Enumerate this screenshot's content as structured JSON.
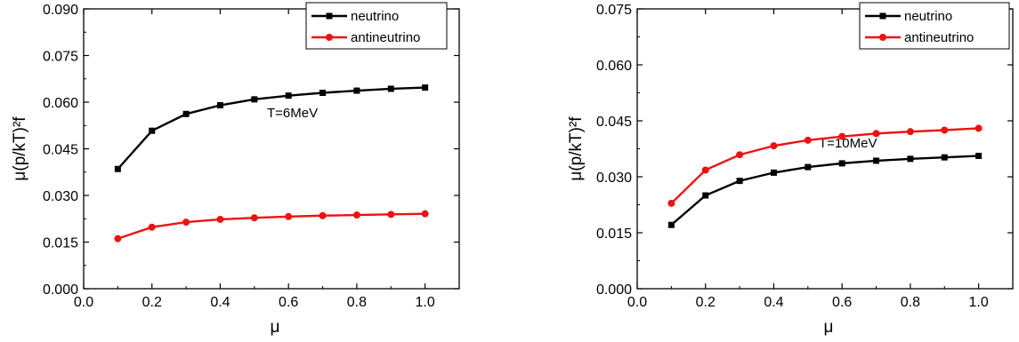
{
  "chart_data": [
    {
      "type": "line",
      "xlabel": "μ",
      "ylabel": "μ(p/kT)²f",
      "annotation": "T=6MeV",
      "xlim": [
        0.0,
        1.1
      ],
      "ylim": [
        0.0,
        0.09
      ],
      "x_ticks": [
        "0.0",
        "0.2",
        "0.4",
        "0.6",
        "0.8",
        "1.0"
      ],
      "y_ticks": [
        "0.000",
        "0.015",
        "0.030",
        "0.045",
        "0.060",
        "0.075",
        "0.090"
      ],
      "legend_position": "top-right",
      "x": [
        0.1,
        0.2,
        0.3,
        0.4,
        0.5,
        0.6,
        0.7,
        0.8,
        0.9,
        1.0
      ],
      "series": [
        {
          "name": "neutrino",
          "color": "#000000",
          "marker": "square",
          "values": [
            0.0385,
            0.0508,
            0.0562,
            0.059,
            0.0609,
            0.0621,
            0.063,
            0.0637,
            0.0643,
            0.0647
          ]
        },
        {
          "name": "antineutrino",
          "color": "#ee1111",
          "marker": "circle",
          "values": [
            0.0161,
            0.0198,
            0.0214,
            0.0223,
            0.0228,
            0.0232,
            0.0235,
            0.0237,
            0.0239,
            0.0241
          ]
        }
      ]
    },
    {
      "type": "line",
      "xlabel": "μ",
      "ylabel": "μ(p/kT)²f",
      "annotation": "T=10MeV",
      "xlim": [
        0.0,
        1.1
      ],
      "ylim": [
        0.0,
        0.075
      ],
      "x_ticks": [
        "0.0",
        "0.2",
        "0.4",
        "0.6",
        "0.8",
        "1.0"
      ],
      "y_ticks": [
        "0.000",
        "0.015",
        "0.030",
        "0.045",
        "0.060",
        "0.075"
      ],
      "legend_position": "top-right",
      "x": [
        0.1,
        0.2,
        0.3,
        0.4,
        0.5,
        0.6,
        0.7,
        0.8,
        0.9,
        1.0
      ],
      "series": [
        {
          "name": "neutrino",
          "color": "#000000",
          "marker": "square",
          "values": [
            0.0171,
            0.025,
            0.0289,
            0.0311,
            0.0326,
            0.0336,
            0.0343,
            0.0348,
            0.0352,
            0.0356
          ]
        },
        {
          "name": "antineutrino",
          "color": "#ee1111",
          "marker": "circle",
          "values": [
            0.0229,
            0.0318,
            0.0359,
            0.0383,
            0.0398,
            0.0408,
            0.0416,
            0.0421,
            0.0425,
            0.043
          ]
        }
      ]
    }
  ]
}
